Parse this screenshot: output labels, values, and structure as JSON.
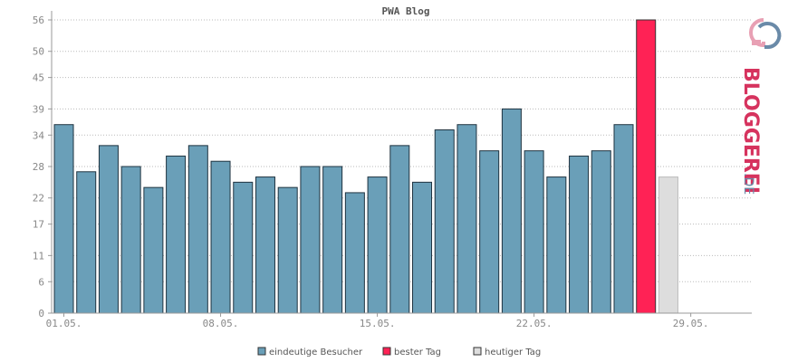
{
  "chart_data": {
    "type": "bar",
    "title": "PWA Blog",
    "xlabel": "",
    "ylabel": "",
    "ylim": [
      0,
      57
    ],
    "yticks": [
      0,
      6,
      11,
      17,
      22,
      28,
      34,
      39,
      45,
      50,
      56
    ],
    "xtick_labels": [
      "01.05.",
      "08.05.",
      "15.05.",
      "22.05.",
      "29.05."
    ],
    "xtick_day_index": [
      1,
      8,
      15,
      22,
      29
    ],
    "grid": true,
    "legend_position": "bottom",
    "days": [
      1,
      2,
      3,
      4,
      5,
      6,
      7,
      8,
      9,
      10,
      11,
      12,
      13,
      14,
      15,
      16,
      17,
      18,
      19,
      20,
      21,
      22,
      23,
      24,
      25,
      26,
      27,
      28,
      29,
      30
    ],
    "series": [
      {
        "name": "eindeutige Besucher",
        "color": "#6a9fb8",
        "values": [
          36,
          27,
          32,
          28,
          24,
          30,
          32,
          29,
          25,
          26,
          24,
          28,
          28,
          23,
          26,
          32,
          25,
          35,
          36,
          31,
          39,
          31,
          26,
          30,
          31,
          36,
          null,
          null,
          null,
          null
        ]
      },
      {
        "name": "bester Tag",
        "color": "#ff2255",
        "values": [
          null,
          null,
          null,
          null,
          null,
          null,
          null,
          null,
          null,
          null,
          null,
          null,
          null,
          null,
          null,
          null,
          null,
          null,
          null,
          null,
          null,
          null,
          null,
          null,
          null,
          null,
          56,
          null,
          null,
          null
        ]
      },
      {
        "name": "heutiger Tag",
        "color": "#dddddd",
        "values": [
          null,
          null,
          null,
          null,
          null,
          null,
          null,
          null,
          null,
          null,
          null,
          null,
          null,
          null,
          null,
          null,
          null,
          null,
          null,
          null,
          null,
          null,
          null,
          null,
          null,
          null,
          null,
          26,
          null,
          null
        ]
      }
    ]
  },
  "logo": {
    "text_main": "BLOGGEREI",
    "text_suffix": ".DE",
    "colors": {
      "accent": "#d6335e",
      "secondary": "#6a8aa8"
    }
  }
}
